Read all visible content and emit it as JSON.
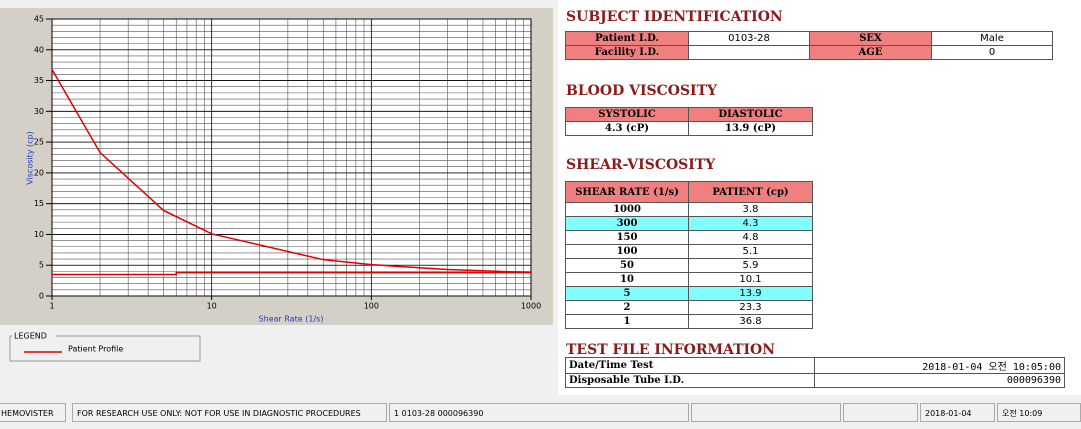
{
  "chart_data": {
    "type": "line",
    "xlabel": "Shear Rate (1/s)",
    "ylabel": "Viscosity (cp)",
    "xscale": "log",
    "xlim": [
      1,
      1000
    ],
    "xticks": [
      1,
      10,
      100,
      1000
    ],
    "ylim": [
      0,
      45
    ],
    "yticks": [
      0,
      5,
      10,
      15,
      20,
      25,
      30,
      35,
      40,
      45
    ],
    "grid": true,
    "minor_grid": true,
    "legend_title": "LEGEND",
    "series": [
      {
        "name": "Patient Profile",
        "color": "#e00000",
        "x": [
          1,
          2,
          5,
          10,
          50,
          100,
          150,
          300,
          1000
        ],
        "values": [
          36.8,
          23.3,
          13.9,
          10.1,
          5.9,
          5.1,
          4.8,
          4.3,
          3.8
        ]
      },
      {
        "color": "#e00000",
        "x": [
          1,
          6,
          6,
          1000
        ],
        "values": [
          3.5,
          3.5,
          3.8,
          3.8
        ]
      }
    ]
  },
  "subject": {
    "title": "SUBJECT IDENTIFICATION",
    "patient_id_label": "Patient I.D.",
    "patient_id": "0103-28",
    "sex_label": "SEX",
    "sex": "Male",
    "facility_id_label": "Facility I.D.",
    "age_label": "AGE",
    "age": "0"
  },
  "blood": {
    "title": "BLOOD VISCOSITY",
    "headers": [
      "SYSTOLIC",
      "DIASTOLIC"
    ],
    "values": [
      "4.3 (cP)",
      "13.9 (cP)"
    ]
  },
  "shear": {
    "title": "SHEAR-VISCOSITY",
    "headers": [
      "SHEAR RATE (1/s)",
      "PATIENT (cp)"
    ],
    "highlight_rows": [
      1,
      6
    ],
    "rows": [
      [
        "1000",
        "3.8"
      ],
      [
        "300",
        "4.3"
      ],
      [
        "150",
        "4.8"
      ],
      [
        "100",
        "5.1"
      ],
      [
        "50",
        "5.9"
      ],
      [
        "10",
        "10.1"
      ],
      [
        "5",
        "13.9"
      ],
      [
        "2",
        "23.3"
      ],
      [
        "1",
        "36.8"
      ]
    ]
  },
  "test_file": {
    "title": "TEST FILE INFORMATION",
    "rows": [
      [
        "Date/Time Test",
        "2018-01-04  오전 10:05:00"
      ],
      [
        "Disposable Tube I.D.",
        "000096390"
      ]
    ]
  },
  "status": [
    "HEMOVISTER",
    "FOR RESEARCH USE ONLY: NOT FOR USE IN DIAGNOSTIC PROCEDURES",
    "1  0103-28  000096390",
    "2018-01-04",
    "오전 10:09"
  ]
}
